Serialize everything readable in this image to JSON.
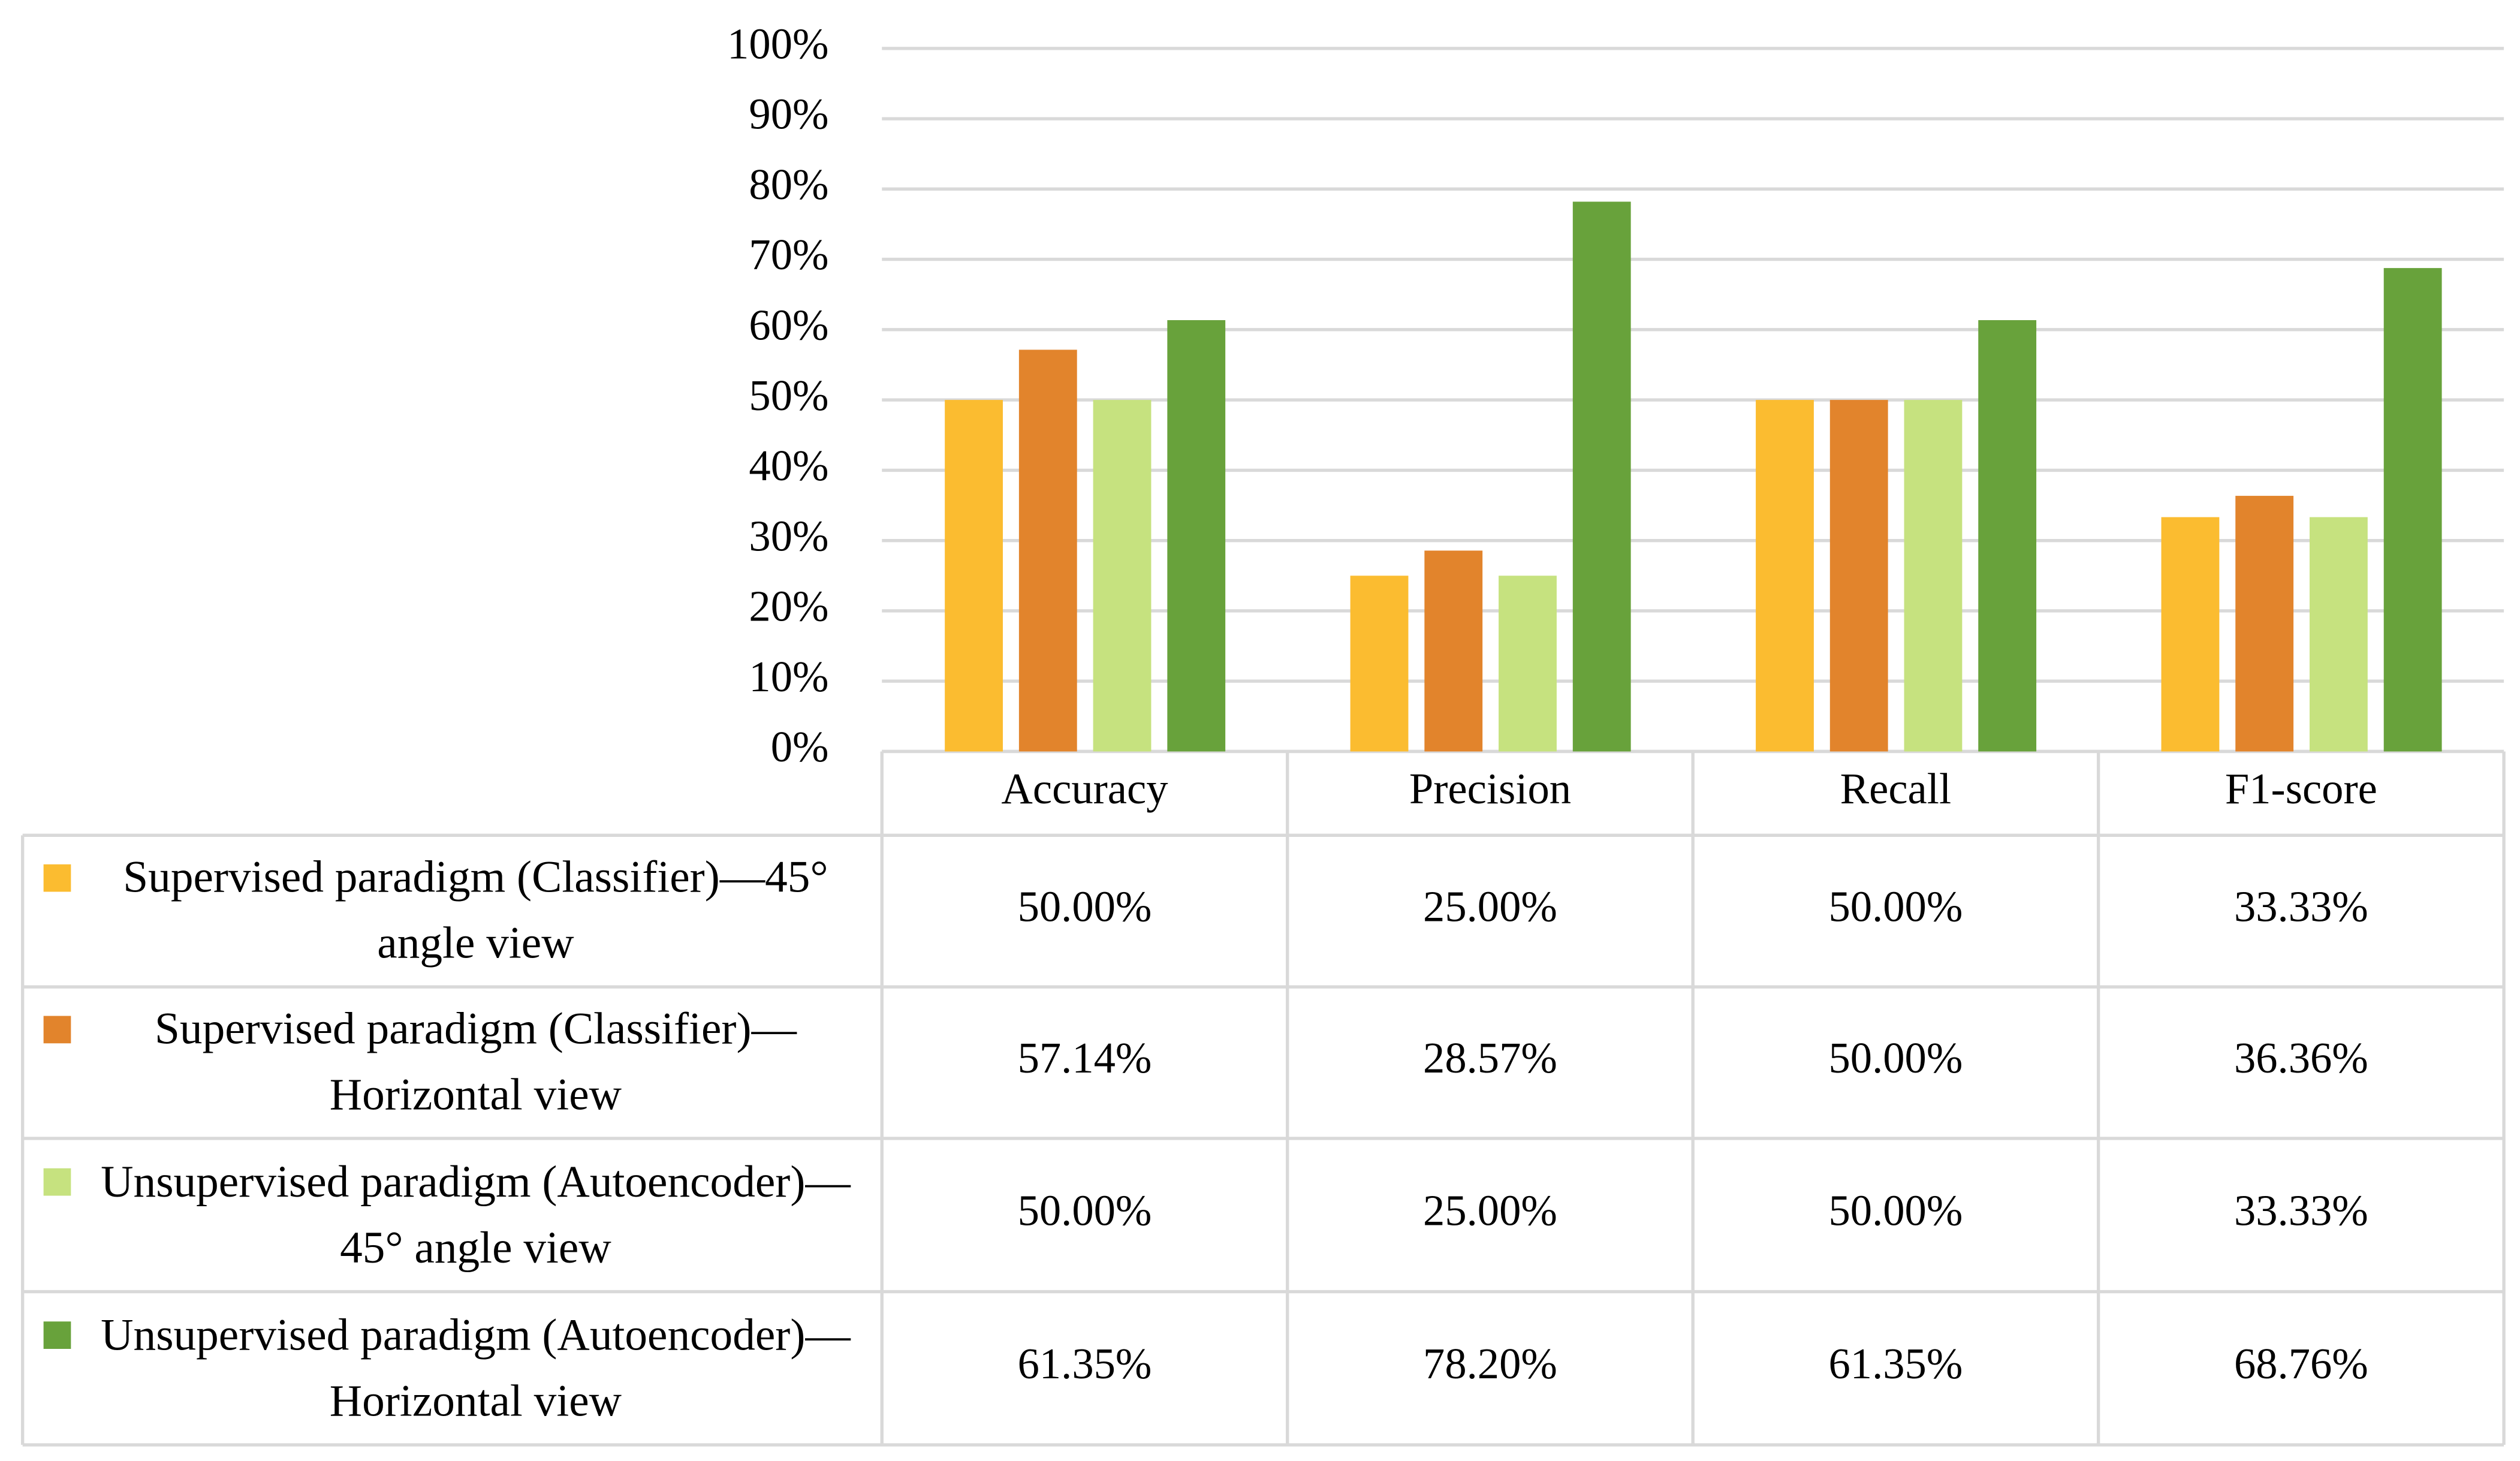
{
  "chart_data": {
    "type": "bar",
    "categories": [
      "Accuracy",
      "Precision",
      "Recall",
      "F1-score"
    ],
    "series": [
      {
        "name": "Supervised paradigm (Classifier)—45° angle view",
        "color": "#fbbc30",
        "values": [
          50,
          25,
          50,
          33.33
        ],
        "value_labels": [
          "50.00%",
          "25.00%",
          "50.00%",
          "33.33%"
        ]
      },
      {
        "name": "Supervised paradigm (Classifier)—Horizontal view",
        "color": "#e2842c",
        "values": [
          57.14,
          28.57,
          50,
          36.36
        ],
        "value_labels": [
          "57.14%",
          "28.57%",
          "50.00%",
          "36.36%"
        ]
      },
      {
        "name": "Unsupervised paradigm (Autoencoder)—45° angle view",
        "color": "#c6e27f",
        "values": [
          50,
          25,
          50,
          33.33
        ],
        "value_labels": [
          "50.00%",
          "25.00%",
          "50.00%",
          "33.33%"
        ]
      },
      {
        "name": "Unsupervised paradigm (Autoencoder)—Horizontal view",
        "color": "#68a23b",
        "values": [
          61.35,
          78.2,
          61.35,
          68.76
        ],
        "value_labels": [
          "61.35%",
          "78.20%",
          "61.35%",
          "68.76%"
        ]
      }
    ],
    "ylim": [
      0,
      100
    ],
    "yticks": [
      {
        "value": 0,
        "label": "0%"
      },
      {
        "value": 10,
        "label": "10%"
      },
      {
        "value": 20,
        "label": "20%"
      },
      {
        "value": 30,
        "label": "30%"
      },
      {
        "value": 40,
        "label": "40%"
      },
      {
        "value": 50,
        "label": "50%"
      },
      {
        "value": 60,
        "label": "60%"
      },
      {
        "value": 70,
        "label": "70%"
      },
      {
        "value": 80,
        "label": "80%"
      },
      {
        "value": 90,
        "label": "90%"
      },
      {
        "value": 100,
        "label": "100%"
      }
    ],
    "grid": true
  }
}
